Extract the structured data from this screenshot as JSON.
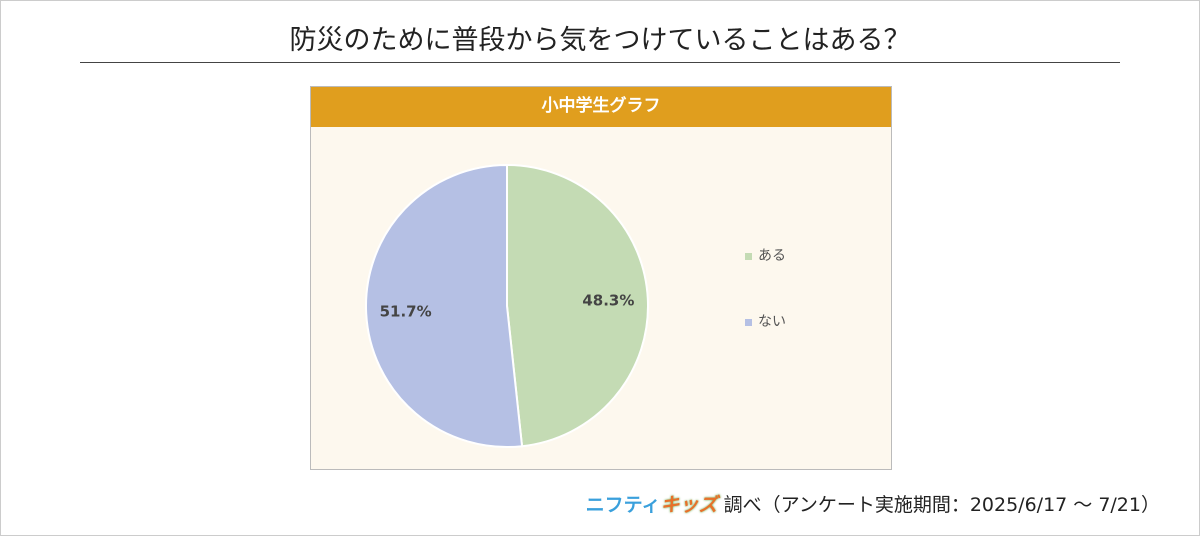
{
  "title": "防災のために普段から気をつけていることはある？",
  "chart_data": {
    "type": "pie",
    "title": "小中学生グラフ",
    "categories": [
      "ある",
      "ない"
    ],
    "values": [
      48.3,
      51.7
    ],
    "labels": [
      "48.3%",
      "51.7%"
    ],
    "colors": [
      "#c4dbb4",
      "#b5c0e4"
    ],
    "legend_position": "right"
  },
  "footer": {
    "logo_part1": "ニフティ",
    "logo_part2": "キッズ",
    "text": "調べ（アンケート実施期間：2025/6/17 ～ 7/21）"
  }
}
